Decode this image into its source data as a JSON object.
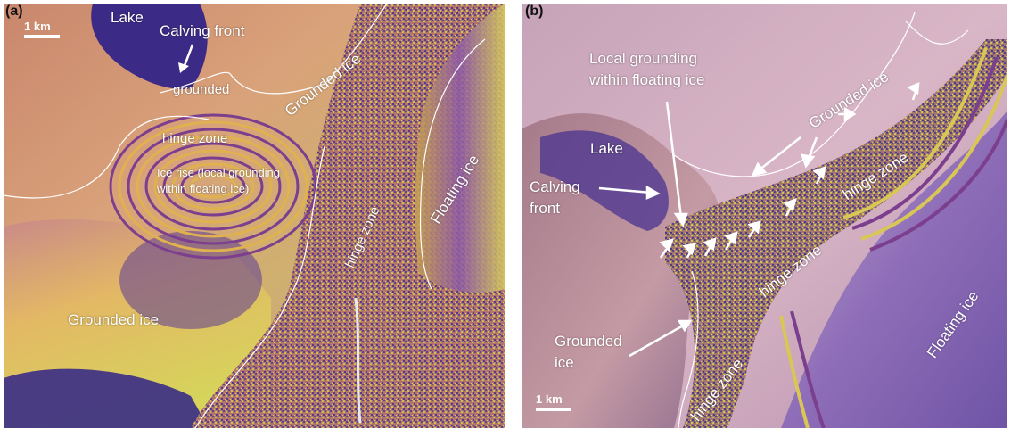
{
  "panel_a": {
    "letter": "(a)",
    "scale": "1 km",
    "labels": {
      "lake": "Lake",
      "calving_front": "Calving front",
      "grounded": "grounded",
      "grounded_ice_top": "Grounded ice",
      "hinge_zone_upper": "hinge zone",
      "ice_rise_line1": "Ice rise (local grounding",
      "ice_rise_line2": "within floating ice)",
      "floating_ice": "Floating ice",
      "hinge_zone_diag": "hinge zone",
      "grounded_ice_bottom": "Grounded ice"
    }
  },
  "panel_b": {
    "letter": "(b)",
    "scale": "1 km",
    "labels": {
      "local_grounding_line1": "Local grounding",
      "local_grounding_line2": "within floating ice",
      "grounded_ice_diag": "Grounded ice",
      "lake": "Lake",
      "calving_front_line1": "Calving",
      "calving_front_line2": "front",
      "hinge_zone_1": "hinge zone",
      "hinge_zone_2": "hinge zone",
      "grounded_ice_line1": "Grounded",
      "grounded_ice_line2": "ice",
      "hinge_zone_3": "hinge zone",
      "floating_ice": "Floating ice"
    }
  },
  "colors": {
    "grounded": "#d9a07a",
    "floating_purple": "#7a4fb0",
    "yellow": "#d8cf5a",
    "pink": "#c99ab8"
  }
}
